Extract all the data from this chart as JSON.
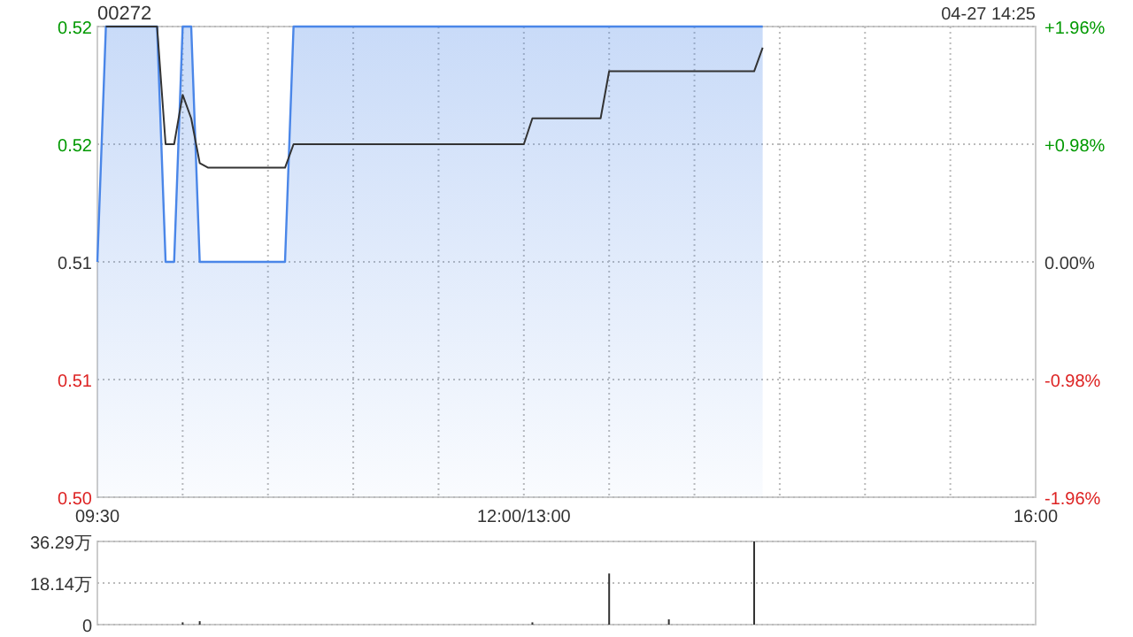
{
  "chart_data": [
    {
      "type": "line",
      "title": "00272",
      "annotations": [
        "04-27 14:25"
      ],
      "categories": [
        "09:30",
        null,
        null,
        null,
        null,
        null,
        null,
        null,
        null,
        null,
        null,
        null,
        null,
        null,
        null,
        null,
        null,
        null,
        null,
        null,
        null,
        null,
        null,
        null,
        null,
        null,
        null,
        null,
        null,
        null,
        null,
        null,
        null,
        null,
        null,
        null,
        null,
        null,
        null,
        null,
        null,
        null,
        null,
        null,
        null,
        null,
        null,
        null,
        null,
        null,
        "12:00/13:00",
        null,
        null,
        null,
        null,
        null,
        null,
        null,
        null,
        null,
        null,
        null,
        null,
        null,
        null,
        null,
        null,
        null,
        null,
        null,
        null,
        null,
        null,
        null,
        null,
        null,
        null,
        null,
        null,
        null,
        null,
        null,
        null,
        null,
        null,
        null,
        null,
        null,
        null,
        null,
        null,
        null,
        null,
        null,
        null,
        null,
        null,
        null,
        null,
        null,
        null,
        null,
        null,
        null,
        null,
        null,
        null,
        null,
        null,
        null,
        "16:00"
      ],
      "ylim": [
        0.5,
        0.52
      ],
      "yticks": [
        {
          "value": 0.52,
          "label": "0.52"
        },
        {
          "value": 0.515,
          "label": "0.52"
        },
        {
          "value": 0.51,
          "label": "0.51"
        },
        {
          "value": 0.505,
          "label": "0.51"
        },
        {
          "value": 0.5,
          "label": "0.50"
        }
      ],
      "y2lim": [
        -1.96,
        1.96
      ],
      "y2ticks": [
        {
          "value": 1.96,
          "label": "+1.96%"
        },
        {
          "value": 0.98,
          "label": "+0.98%"
        },
        {
          "value": 0,
          "label": "0.00%"
        },
        {
          "value": -0.98,
          "label": "-0.98%"
        },
        {
          "value": -1.96,
          "label": "-1.96%"
        }
      ],
      "grid": true,
      "series": [
        {
          "type": "area",
          "color": "#4a86e8",
          "values": [
            0.51,
            0.52,
            0.52,
            0.52,
            0.52,
            0.52,
            0.52,
            0.52,
            0.51,
            0.51,
            0.52,
            0.52,
            0.51,
            0.51,
            0.51,
            0.51,
            0.51,
            0.51,
            0.51,
            0.51,
            0.51,
            0.51,
            0.51,
            0.52,
            0.52,
            0.52,
            0.52,
            0.52,
            0.52,
            0.52,
            0.52,
            0.52,
            0.52,
            0.52,
            0.52,
            0.52,
            0.52,
            0.52,
            0.52,
            0.52,
            0.52,
            0.52,
            0.52,
            0.52,
            0.52,
            0.52,
            0.52,
            0.52,
            0.52,
            0.52,
            0.52,
            0.52,
            0.52,
            0.52,
            0.52,
            0.52,
            0.52,
            0.52,
            0.52,
            0.52,
            0.52,
            0.52,
            0.52,
            0.52,
            0.52,
            0.52,
            0.52,
            0.52,
            0.52,
            0.52,
            0.52,
            0.52,
            0.52,
            0.52,
            0.52,
            0.52,
            0.52,
            0.52,
            0.52,
            null,
            null,
            null,
            null,
            null,
            null,
            null,
            null,
            null,
            null,
            null,
            null,
            null,
            null,
            null,
            null,
            null,
            null,
            null,
            null,
            null,
            null,
            null,
            null,
            null,
            null,
            null,
            null,
            null,
            null,
            null,
            null
          ]
        },
        {
          "color": "#333333",
          "values": [
            null,
            0.52,
            0.52,
            0.52,
            0.52,
            0.52,
            0.52,
            0.52,
            0.515,
            0.515,
            0.5171,
            0.5161,
            0.5142,
            0.514,
            0.514,
            0.514,
            0.514,
            0.514,
            0.514,
            0.514,
            0.514,
            0.514,
            0.514,
            0.515,
            0.515,
            0.515,
            0.515,
            0.515,
            0.515,
            0.515,
            0.515,
            0.515,
            0.515,
            0.515,
            0.515,
            0.515,
            0.515,
            0.515,
            0.515,
            0.515,
            0.515,
            0.515,
            0.515,
            0.515,
            0.515,
            0.515,
            0.515,
            0.515,
            0.515,
            0.515,
            0.515,
            0.5161,
            0.5161,
            0.5161,
            0.5161,
            0.5161,
            0.5161,
            0.5161,
            0.5161,
            0.5161,
            0.5181,
            0.5181,
            0.5181,
            0.5181,
            0.5181,
            0.5181,
            0.5181,
            0.5181,
            0.5181,
            0.5181,
            0.5181,
            0.5181,
            0.5181,
            0.5181,
            0.5181,
            0.5181,
            0.5181,
            0.5181,
            0.5191,
            null,
            null,
            null,
            null,
            null,
            null,
            null,
            null,
            null,
            null,
            null,
            null,
            null,
            null,
            null,
            null,
            null,
            null,
            null,
            null,
            null,
            null,
            null,
            null,
            null,
            null,
            null,
            null,
            null,
            null,
            null,
            null
          ]
        }
      ]
    },
    {
      "type": "bar",
      "categories": [
        null,
        null,
        null,
        null,
        null,
        null,
        null,
        null,
        null,
        null,
        null,
        null,
        null,
        null,
        null,
        null,
        null,
        null,
        null,
        null,
        null,
        null,
        null,
        null,
        null,
        null,
        null,
        null,
        null,
        null,
        null,
        null,
        null,
        null,
        null,
        null,
        null,
        null,
        null,
        null,
        null,
        null,
        null,
        null,
        null,
        null,
        null,
        null,
        null,
        null,
        null,
        null,
        null,
        null,
        null,
        null,
        null,
        null,
        null,
        null,
        null,
        null,
        null,
        null,
        null,
        null,
        null,
        null,
        null,
        null,
        null,
        null,
        null,
        null,
        null,
        null,
        null,
        null,
        null,
        null,
        null,
        null,
        null,
        null,
        null,
        null,
        null,
        null,
        null,
        null,
        null,
        null,
        null,
        null,
        null,
        null,
        null,
        null,
        null,
        null,
        null,
        null,
        null,
        null,
        null,
        null,
        null,
        null,
        null,
        null,
        null
      ],
      "ylim": [
        0,
        36.29
      ],
      "yticks": [
        0,
        {
          "value": 18.14,
          "label": "18.14万"
        },
        {
          "value": 36.29,
          "label": "36.29万"
        }
      ],
      "tick_labels": "y",
      "grid": "y",
      "series": [
        {
          "color": "#333333",
          "values": [
            null,
            null,
            null,
            null,
            null,
            null,
            null,
            null,
            null,
            null,
            1,
            null,
            1.5,
            null,
            null,
            null,
            null,
            null,
            null,
            null,
            null,
            null,
            null,
            null,
            null,
            null,
            null,
            null,
            null,
            null,
            null,
            null,
            null,
            null,
            null,
            null,
            null,
            null,
            null,
            null,
            null,
            null,
            null,
            null,
            null,
            null,
            null,
            null,
            null,
            null,
            null,
            1,
            null,
            null,
            null,
            null,
            null,
            null,
            null,
            null,
            22.3,
            null,
            null,
            null,
            null,
            null,
            null,
            2.3,
            null,
            null,
            null,
            null,
            null,
            null,
            null,
            null,
            null,
            36.29,
            null,
            null,
            null,
            null,
            null,
            null,
            null,
            null,
            null,
            null,
            null,
            null,
            null,
            null,
            null,
            null,
            null,
            null,
            null,
            null,
            null,
            null,
            null,
            null,
            null,
            null,
            null,
            null,
            null,
            null,
            null,
            null,
            null
          ]
        }
      ]
    }
  ]
}
